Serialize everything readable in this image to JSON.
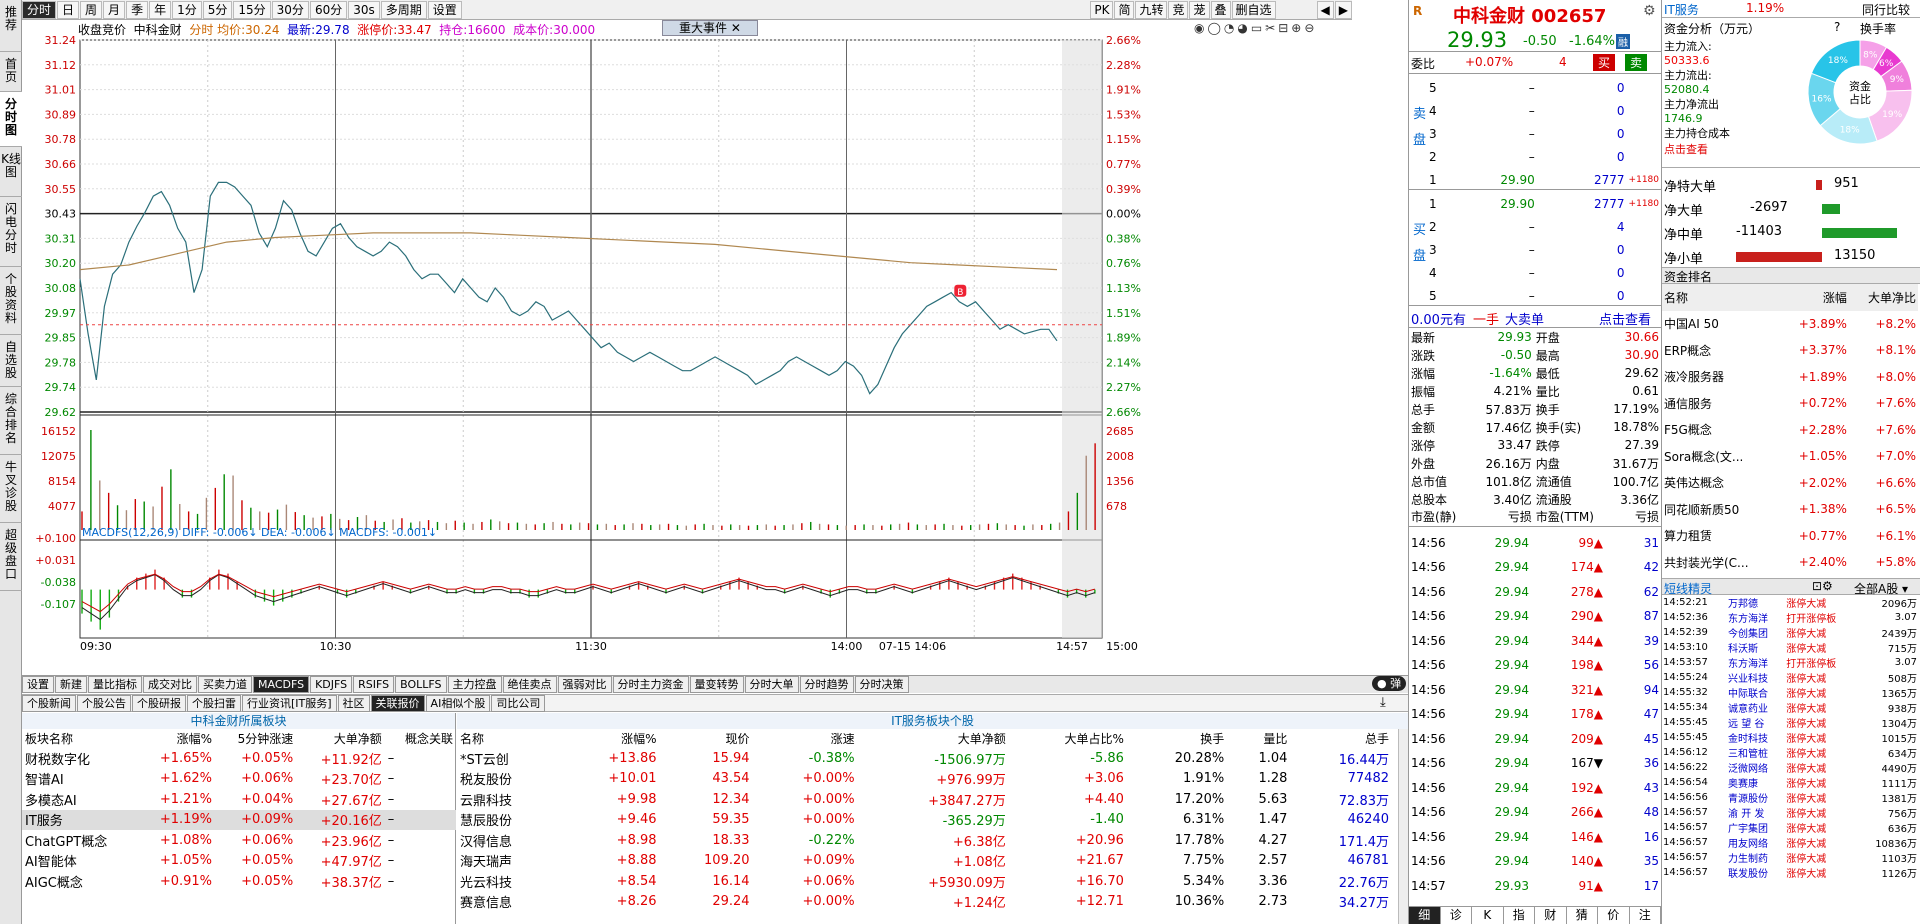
{
  "nav_left": [
    "推荐",
    "首页",
    "分时图",
    "K线图",
    "闪电分时",
    "个股资料",
    "自选股",
    "综合排名",
    "牛叉诊股",
    "超级盘口"
  ],
  "toolbar": {
    "tabs": [
      "分时",
      "日",
      "周",
      "月",
      "季",
      "年",
      "1分",
      "5分",
      "15分",
      "30分",
      "60分",
      "30s",
      "多周期",
      "设置"
    ],
    "right": [
      "PK",
      "简",
      "九转",
      "竞",
      "茏",
      "叠",
      "删自选"
    ]
  },
  "chart": {
    "info": {
      "mode": "收盘竞价",
      "name": "中科金财",
      "avg_label": "分时 均价:",
      "avg": "30.24",
      "last_label": "最新:",
      "last": "29.78",
      "limit_label": "涨停价:",
      "limit": "33.47",
      "pos_label": "持仓:",
      "pos": "16600",
      "cost_label": "成本价:",
      "cost": "30.000"
    },
    "event_btn": "重大事件",
    "y_left": [
      "31.24",
      "31.12",
      "31.01",
      "30.89",
      "30.78",
      "30.66",
      "30.55",
      "30.43",
      "30.31",
      "30.20",
      "30.08",
      "29.97",
      "29.85",
      "29.78",
      "29.74",
      "29.62"
    ],
    "y_right": [
      "2.66%",
      "2.28%",
      "1.91%",
      "1.53%",
      "1.15%",
      "0.77%",
      "0.39%",
      "0.00%",
      "0.38%",
      "0.76%",
      "1.13%",
      "1.51%",
      "1.89%",
      "2.14%",
      "2.27%",
      "2.66%"
    ],
    "vol_left": [
      "16152",
      "12075",
      "8154",
      "4077"
    ],
    "vol_right": [
      "2685",
      "2008",
      "1356",
      "678"
    ],
    "macd_label": "MACDFS(12,26,9) DIFF: -0.006↓ DEA: -0.006↓ MACDFS: -0.001↓",
    "macd_y": [
      "+0.100",
      "+0.031",
      "-0.038",
      "-0.107"
    ],
    "x_labels": [
      "09:30",
      "10:30",
      "11:30",
      "14:00",
      "07-15 14:06",
      "14:57",
      "15:00"
    ],
    "marker": "B",
    "price_series": [
      30.2,
      29.96,
      29.76,
      30.08,
      30.22,
      30.26,
      30.36,
      30.43,
      30.49,
      30.56,
      30.58,
      30.52,
      30.42,
      30.36,
      30.14,
      30.24,
      30.56,
      30.62,
      30.62,
      30.6,
      30.56,
      30.52,
      30.4,
      30.34,
      30.42,
      30.54,
      30.5,
      30.4,
      30.32,
      30.3,
      30.36,
      30.42,
      30.44,
      30.38,
      30.34,
      30.32,
      30.3,
      30.32,
      30.36,
      30.34,
      30.3,
      30.24,
      30.2,
      30.22,
      30.22,
      30.18,
      30.14,
      30.2,
      30.16,
      30.12,
      30.1,
      30.16,
      30.12,
      30.06,
      30.04,
      30.06,
      30.1,
      30.08,
      30.02,
      30.04,
      30.06,
      30.02,
      29.98,
      29.94,
      29.9,
      29.92,
      29.88,
      29.86,
      29.84,
      29.86,
      29.88,
      29.86,
      29.84,
      29.82,
      29.8,
      29.8,
      29.82,
      29.84,
      29.86,
      29.84,
      29.82,
      29.8,
      29.78,
      29.74,
      29.76,
      29.78,
      29.8,
      29.84,
      29.86,
      29.84,
      29.82,
      29.8,
      29.78,
      29.8,
      29.84,
      29.82,
      29.78,
      29.7,
      29.74,
      29.82,
      29.9,
      29.96,
      30.0,
      30.04,
      30.08,
      30.1,
      30.12,
      30.14,
      30.1,
      30.08,
      30.1,
      30.06,
      30.02,
      29.98,
      30.0,
      29.98,
      29.96,
      29.97,
      29.98,
      29.98,
      29.93
    ],
    "avg_series": [
      30.24,
      30.26,
      30.31,
      30.36,
      30.38,
      30.39,
      30.4,
      30.4,
      30.4,
      30.39,
      30.38,
      30.37,
      30.36,
      30.35,
      30.33,
      30.31,
      30.29,
      30.27,
      30.26,
      30.25,
      30.24
    ],
    "vol_series": [
      3000,
      16152,
      8000,
      6000,
      4000,
      3200,
      5000,
      4600,
      3800,
      7000,
      9800,
      4200,
      3000,
      2600,
      5200,
      6800,
      9000,
      8800,
      4800,
      3600,
      3000,
      2800,
      3300,
      4100,
      2900,
      2400,
      2000,
      2200,
      2600,
      1800,
      1600,
      2100,
      2400,
      1500,
      1300,
      1700,
      1900,
      1200,
      1400,
      1600,
      1300,
      1100,
      1500,
      1200,
      1000,
      1300,
      1700,
      1400,
      1100,
      1200,
      1000,
      900,
      1100,
      1300,
      1000,
      900,
      1200,
      1100,
      900,
      1000,
      800,
      900,
      1100,
      1000,
      800,
      900,
      1000,
      800,
      700,
      900,
      1000,
      800,
      700,
      900,
      800,
      700,
      800,
      900,
      700,
      800,
      900,
      1100,
      1300,
      1000,
      900,
      800,
      700,
      800,
      900,
      800,
      700,
      900,
      1000,
      1200,
      900,
      800,
      900,
      1000,
      800,
      700,
      800,
      900,
      1000,
      1100,
      900,
      800,
      700,
      900,
      800,
      1000,
      1200,
      3000,
      6000,
      12000,
      14000
    ],
    "macd_series": [
      -0.06,
      -0.08,
      -0.1,
      -0.07,
      -0.03,
      0.01,
      0.03,
      0.04,
      0.05,
      0.03,
      0.0,
      -0.02,
      -0.02,
      0.0,
      0.03,
      0.05,
      0.04,
      0.02,
      0.0,
      -0.02,
      -0.03,
      -0.04,
      -0.03,
      -0.02,
      -0.01,
      0.0,
      0.01,
      0.0,
      -0.01,
      -0.02,
      -0.01,
      0.0,
      0.01,
      0.02,
      0.01,
      0.0,
      -0.01,
      0.0,
      0.01,
      0.0,
      -0.01,
      -0.01,
      0.0,
      -0.01,
      -0.01,
      0.0,
      0.0,
      -0.01,
      -0.01,
      -0.02,
      -0.02,
      -0.01,
      0.0,
      -0.01,
      -0.01,
      0.0,
      0.01,
      0.0,
      -0.01,
      0.0,
      0.01,
      0.02,
      0.01,
      0.0,
      -0.01,
      0.0,
      0.01,
      0.0,
      -0.01,
      0.0,
      0.01,
      0.02,
      0.03,
      0.02,
      0.01,
      0.0,
      0.0,
      -0.01,
      0.0,
      0.01,
      0.0,
      -0.01,
      -0.02,
      -0.01,
      0.0,
      0.0,
      -0.01,
      -0.01,
      0.0,
      0.01,
      0.0,
      -0.01,
      0.0,
      0.01,
      0.02,
      0.03,
      0.02,
      0.01,
      0.0,
      0.01,
      0.02,
      0.03,
      0.04,
      0.03,
      0.02,
      0.01,
      0.0,
      -0.01,
      -0.02,
      -0.01,
      -0.02,
      -0.01
    ]
  },
  "bottom": {
    "tabs": [
      "设置",
      "新建",
      "量比指标",
      "成交对比",
      "买卖力道",
      "MACDFS",
      "KDJFS",
      "RSIFS",
      "BOLLFS",
      "主力控盘",
      "绝佳卖点",
      "强弱对比",
      "分时主力资金",
      "量变转势",
      "分时大单",
      "分时趋势",
      "分时决策"
    ],
    "active_tab": "MACDFS",
    "subtabs": [
      "个股新闻",
      "个股公告",
      "个股研报",
      "个股扫雷",
      "行业资讯[IT服务]",
      "社区",
      "关联报价",
      "AI相似个股",
      "司比公司"
    ],
    "left_title": "中科金财所属板块",
    "left_headers": [
      "板块名称",
      "涨幅%",
      "5分钟涨速",
      "大单净额",
      "概念关联"
    ],
    "left_rows": [
      [
        "财税数字化",
        "+1.65%",
        "+0.05%",
        "+11.92亿"
      ],
      [
        "智谱AI",
        "+1.62%",
        "+0.06%",
        "+23.70亿"
      ],
      [
        "多模态AI",
        "+1.21%",
        "+0.04%",
        "+27.67亿"
      ],
      [
        "IT服务",
        "+1.19%",
        "+0.09%",
        "+20.16亿"
      ],
      [
        "ChatGPT概念",
        "+1.08%",
        "+0.06%",
        "+23.96亿"
      ],
      [
        "AI智能体",
        "+1.05%",
        "+0.05%",
        "+47.97亿"
      ],
      [
        "AIGC概念",
        "+0.91%",
        "+0.05%",
        "+38.37亿"
      ]
    ],
    "right_title": "IT服务板块个股",
    "right_headers": [
      "名称",
      "涨幅%",
      "现价",
      "涨速",
      "大单净额",
      "大单占比%",
      "换手",
      "量比",
      "总手"
    ],
    "right_rows": [
      [
        "*ST云创",
        "+13.86",
        "15.94",
        "-0.38%",
        "-1506.97万",
        "-5.86",
        "20.28%",
        "1.04",
        "16.44万"
      ],
      [
        "税友股份",
        "+10.01",
        "43.54",
        "+0.00%",
        "+976.99万",
        "+3.06",
        "1.91%",
        "1.28",
        "77482"
      ],
      [
        "云鼎科技",
        "+9.98",
        "12.34",
        "+0.00%",
        "+3847.27万",
        "+4.40",
        "17.20%",
        "5.63",
        "72.83万"
      ],
      [
        "慧辰股份",
        "+9.46",
        "59.35",
        "+0.00%",
        "-365.29万",
        "-1.40",
        "6.31%",
        "1.47",
        "46240"
      ],
      [
        "汉得信息",
        "+8.98",
        "18.33",
        "-0.22%",
        "+6.38亿",
        "+20.96",
        "17.78%",
        "4.27",
        "171.4万"
      ],
      [
        "海天瑞声",
        "+8.88",
        "109.20",
        "+0.09%",
        "+1.08亿",
        "+21.67",
        "7.75%",
        "2.57",
        "46781"
      ],
      [
        "光云科技",
        "+8.54",
        "16.14",
        "+0.06%",
        "+5930.09万",
        "+16.70",
        "5.34%",
        "3.36",
        "22.76万"
      ],
      [
        "赛意信息",
        "+8.26",
        "29.24",
        "+0.00%",
        "+1.24亿",
        "+12.71",
        "10.36%",
        "2.73",
        "34.27万"
      ]
    ]
  },
  "quote": {
    "logo": "R",
    "name": "中科金财",
    "code": "002657",
    "price": "29.93",
    "change": "-0.50",
    "pct": "-1.64%",
    "badge": "融",
    "weibi_label": "委比",
    "weibi": "+0.07%",
    "weicha": "4",
    "buy": "买",
    "sell": "卖",
    "sell_side": "卖盘",
    "buy_side": "买盘",
    "asks": [
      [
        "5",
        "–",
        "0"
      ],
      [
        "4",
        "–",
        "0"
      ],
      [
        "3",
        "–",
        "0"
      ],
      [
        "2",
        "–",
        "0"
      ],
      [
        "1",
        "29.90",
        "2777",
        "+1180"
      ]
    ],
    "bids": [
      [
        "1",
        "29.90",
        "2777",
        "+1180"
      ],
      [
        "2",
        "–",
        "4"
      ],
      [
        "3",
        "–",
        "0"
      ],
      [
        "4",
        "–",
        "0"
      ],
      [
        "5",
        "–",
        "0"
      ]
    ],
    "bigorder": {
      "amt": "0.00元有",
      "hand": "一手",
      "label": "大卖单",
      "view": "点击查看"
    },
    "stats": [
      [
        "最新",
        "29.93",
        "开盘",
        "30.66"
      ],
      [
        "涨跌",
        "-0.50",
        "最高",
        "30.90"
      ],
      [
        "涨幅",
        "-1.64%",
        "最低",
        "29.62"
      ],
      [
        "振幅",
        "4.21%",
        "量比",
        "0.61"
      ],
      [
        "总手",
        "57.83万",
        "换手",
        "17.19%"
      ],
      [
        "金额",
        "17.46亿",
        "换手(实)",
        "18.78%"
      ],
      [
        "涨停",
        "33.47",
        "跌停",
        "27.39"
      ],
      [
        "外盘",
        "26.16万",
        "内盘",
        "31.67万"
      ],
      [
        "总市值",
        "101.8亿",
        "流通值",
        "100.7亿"
      ],
      [
        "总股本",
        "3.40亿",
        "流通股",
        "3.36亿"
      ],
      [
        "市盈(静)",
        "亏损",
        "市盈(TTM)",
        "亏损"
      ]
    ],
    "ticks": [
      [
        "14:56",
        "29.94",
        "99",
        "31"
      ],
      [
        "14:56",
        "29.94",
        "174",
        "42"
      ],
      [
        "14:56",
        "29.94",
        "278",
        "62"
      ],
      [
        "14:56",
        "29.94",
        "290",
        "87"
      ],
      [
        "14:56",
        "29.94",
        "344",
        "39"
      ],
      [
        "14:56",
        "29.94",
        "198",
        "56"
      ],
      [
        "14:56",
        "29.94",
        "321",
        "94"
      ],
      [
        "14:56",
        "29.94",
        "178",
        "47"
      ],
      [
        "14:56",
        "29.94",
        "209",
        "45"
      ],
      [
        "14:56",
        "29.94",
        "167",
        "36"
      ],
      [
        "14:56",
        "29.94",
        "192",
        "43"
      ],
      [
        "14:56",
        "29.94",
        "266",
        "48"
      ],
      [
        "14:56",
        "29.94",
        "146",
        "16"
      ],
      [
        "14:56",
        "29.94",
        "140",
        "35"
      ],
      [
        "14:57",
        "29.93",
        "91",
        "17"
      ]
    ],
    "bottom_tabs": [
      "细",
      "诊",
      "K",
      "指",
      "财",
      "猜",
      "价",
      "注"
    ]
  },
  "flow": {
    "sector": "IT服务",
    "sector_pct": "1.19%",
    "peer": "同行比较",
    "title": "资金分析（万元）",
    "help": "?",
    "switch": "换手率",
    "items": [
      [
        "主力流入:",
        "50333.6"
      ],
      [
        "主力流出:",
        "52080.4"
      ],
      [
        "主力净流出",
        "1746.9"
      ],
      [
        "主力持仓成本",
        ""
      ]
    ],
    "link": "点击查看",
    "donut_center": "资金\n占比",
    "donut_vals": [
      "8%",
      "6%",
      "9%",
      "19%",
      "18%",
      "16%",
      "18%"
    ],
    "net": [
      [
        "净特大单",
        "951",
        "pos"
      ],
      [
        "净大单",
        "-2697",
        "neg"
      ],
      [
        "净中单",
        "-11403",
        "neg"
      ],
      [
        "净小单",
        "13150",
        "pos"
      ]
    ],
    "rank_title": "资金排名",
    "rank_headers": [
      "名称",
      "涨幅",
      "大单净比"
    ],
    "rank_rows": [
      [
        "中国AI 50",
        "+3.89%",
        "+8.2%"
      ],
      [
        "ERP概念",
        "+3.37%",
        "+8.1%"
      ],
      [
        "液冷服务器",
        "+1.89%",
        "+8.0%"
      ],
      [
        "通信服务",
        "+0.72%",
        "+7.6%"
      ],
      [
        "F5G概念",
        "+2.28%",
        "+7.6%"
      ],
      [
        "Sora概念(文...",
        "+1.05%",
        "+7.0%"
      ],
      [
        "英伟达概念",
        "+2.02%",
        "+6.6%"
      ],
      [
        "同花顺新质50",
        "+1.38%",
        "+6.5%"
      ],
      [
        "算力租赁",
        "+0.77%",
        "+6.1%"
      ],
      [
        "共封装光学(C...",
        "+2.40%",
        "+5.8%"
      ]
    ],
    "elf_title": "短线精灵",
    "elf_filter": "全部A股",
    "elf_rows": [
      [
        "14:52:21",
        "万邦德",
        "涨停大减",
        "2096万"
      ],
      [
        "14:52:36",
        "东方海洋",
        "打开涨停板",
        "3.07"
      ],
      [
        "14:52:39",
        "今创集团",
        "涨停大减",
        "2439万"
      ],
      [
        "14:53:10",
        "科沃斯",
        "涨停大减",
        "715万"
      ],
      [
        "14:53:57",
        "东方海洋",
        "打开涨停板",
        "3.07"
      ],
      [
        "14:55:24",
        "兴业科技",
        "涨停大减",
        "508万"
      ],
      [
        "14:55:32",
        "中际联合",
        "涨停大减",
        "1365万"
      ],
      [
        "14:55:34",
        "诚意药业",
        "涨停大减",
        "938万"
      ],
      [
        "14:55:45",
        "远 望 谷",
        "涨停大减",
        "1304万"
      ],
      [
        "14:55:45",
        "金时科技",
        "涨停大减",
        "1015万"
      ],
      [
        "14:56:12",
        "三和管桩",
        "涨停大减",
        "634万"
      ],
      [
        "14:56:22",
        "泛微网络",
        "涨停大减",
        "4490万"
      ],
      [
        "14:56:54",
        "奥赛康",
        "涨停大减",
        "1111万"
      ],
      [
        "14:56:56",
        "青源股份",
        "涨停大减",
        "1381万"
      ],
      [
        "14:56:57",
        "渝 开 发",
        "涨停大减",
        "756万"
      ],
      [
        "14:56:57",
        "广宇集团",
        "涨停大减",
        "636万"
      ],
      [
        "14:56:57",
        "用友网络",
        "涨停大减",
        "10836万"
      ],
      [
        "14:56:57",
        "力生制药",
        "涨停大减",
        "1103万"
      ],
      [
        "14:56:57",
        "联发股份",
        "涨停大减",
        "1126万"
      ]
    ]
  },
  "colors": {
    "up": "#e00000",
    "down": "#008800",
    "price_line": "#2b6f7a",
    "avg_line": "#b08850"
  }
}
